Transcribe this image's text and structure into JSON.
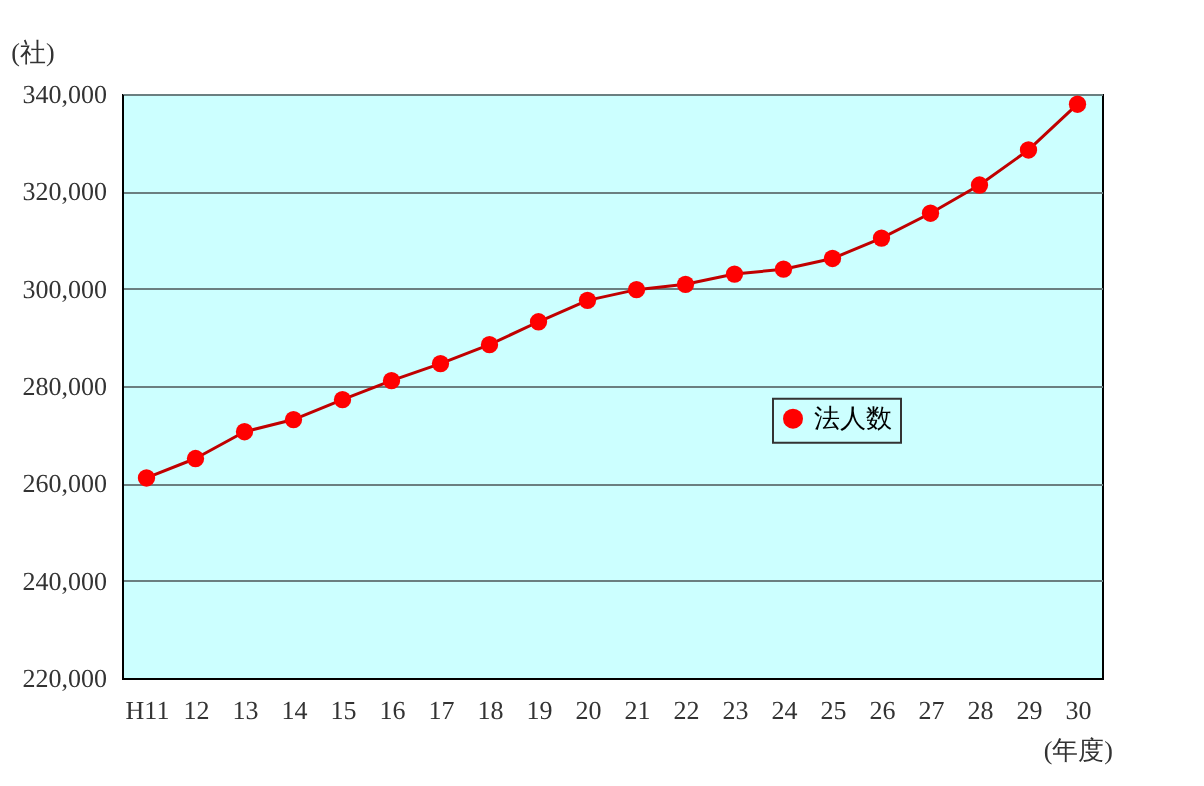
{
  "chart_data": {
    "type": "line",
    "ylabel": "(社)",
    "xlabel": "(年度)",
    "categories": [
      "H11",
      "12",
      "13",
      "14",
      "15",
      "16",
      "17",
      "18",
      "19",
      "20",
      "21",
      "22",
      "23",
      "24",
      "25",
      "26",
      "27",
      "28",
      "29",
      "30"
    ],
    "series": [
      {
        "name": "法人数",
        "color": "#ff0000",
        "values": [
          261100,
          265100,
          270600,
          273100,
          277200,
          281100,
          284600,
          288500,
          293200,
          297600,
          299800,
          300900,
          303000,
          304000,
          306200,
          310400,
          315500,
          321300,
          328500,
          337900
        ]
      }
    ],
    "ylim": [
      220000,
      340000
    ],
    "yticks": [
      {
        "value": 220000,
        "label": "220,000"
      },
      {
        "value": 240000,
        "label": "240,000"
      },
      {
        "value": 260000,
        "label": "260,000"
      },
      {
        "value": 280000,
        "label": "280,000"
      },
      {
        "value": 300000,
        "label": "300,000"
      },
      {
        "value": 320000,
        "label": "320,000"
      },
      {
        "value": 340000,
        "label": "340,000"
      }
    ],
    "grid": "y",
    "legend": "right",
    "marker": "circle",
    "line_style": "solid"
  }
}
